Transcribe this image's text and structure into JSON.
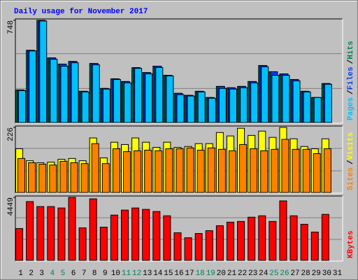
{
  "chart_data": [
    {
      "type": "bar",
      "title": "Daily usage for November 2017",
      "ylim": [
        0,
        748
      ],
      "yticks": [
        748
      ],
      "grid": true,
      "legend_separator": "/",
      "series": [
        {
          "name": "Hits",
          "color": "#00805c",
          "values": [
            235,
            527,
            748,
            471,
            425,
            445,
            225,
            430,
            246,
            317,
            297,
            399,
            363,
            410,
            343,
            210,
            195,
            225,
            179,
            261,
            251,
            261,
            297,
            415,
            369,
            353,
            312,
            225,
            179,
            282,
            null
          ]
        },
        {
          "name": "Files",
          "color": "#0040ff",
          "values": [
            235,
            527,
            748,
            471,
            425,
            445,
            225,
            430,
            246,
            317,
            297,
            399,
            363,
            410,
            343,
            210,
            195,
            225,
            179,
            261,
            251,
            261,
            297,
            415,
            369,
            353,
            312,
            225,
            179,
            282,
            null
          ]
        },
        {
          "name": "Pages",
          "color": "#00c0ff",
          "values": [
            230,
            522,
            743,
            461,
            410,
            435,
            220,
            420,
            241,
            312,
            287,
            394,
            353,
            400,
            338,
            200,
            190,
            220,
            174,
            246,
            241,
            251,
            287,
            405,
            343,
            343,
            302,
            220,
            179,
            277,
            null
          ]
        }
      ],
      "legend_order": [
        "Pages",
        "Files",
        "Hits"
      ]
    },
    {
      "type": "bar",
      "ylim": [
        0,
        226
      ],
      "yticks": [
        226
      ],
      "grid": true,
      "legend_separator": "/",
      "series": [
        {
          "name": "Visits",
          "color": "#ffff00",
          "values": [
            151,
            109,
            102,
            104,
            114,
            117,
            109,
            189,
            119,
            174,
            166,
            189,
            174,
            156,
            174,
            156,
            159,
            169,
            169,
            208,
            196,
            223,
            198,
            213,
            191,
            226,
            186,
            159,
            151,
            186,
            null
          ]
        },
        {
          "name": "Sites",
          "color": "#ff8000",
          "values": [
            117,
            102,
            97,
            94,
            107,
            102,
            99,
            169,
            99,
            151,
            141,
            144,
            146,
            144,
            151,
            151,
            154,
            146,
            154,
            149,
            144,
            166,
            151,
            144,
            149,
            184,
            149,
            149,
            134,
            151,
            null
          ]
        }
      ],
      "legend_order": [
        "Sites",
        "Visits"
      ]
    },
    {
      "type": "bar",
      "ylim": [
        0,
        4449
      ],
      "yticks": [
        4449
      ],
      "grid": true,
      "series": [
        {
          "name": "KBytes",
          "color": "#ff0000",
          "values": [
            2225,
            4150,
            3795,
            3795,
            3694,
            4449,
            2276,
            4348,
            2326,
            3187,
            3542,
            3694,
            3593,
            3441,
            3137,
            1922,
            1568,
            1872,
            2074,
            2428,
            2681,
            2732,
            3036,
            3137,
            2732,
            4200,
            3137,
            2530,
            1973,
            3238,
            null
          ]
        }
      ],
      "legend_order": [
        "KBytes"
      ],
      "categories": [
        "1",
        "2",
        "3",
        "4",
        "5",
        "6",
        "7",
        "8",
        "9",
        "10",
        "11",
        "12",
        "13",
        "14",
        "15",
        "16",
        "17",
        "18",
        "19",
        "20",
        "21",
        "22",
        "23",
        "24",
        "25",
        "26",
        "27",
        "28",
        "29",
        "30",
        "31"
      ],
      "category_colors": [
        "#000000",
        "#000000",
        "#000000",
        "#00805c",
        "#00805c",
        "#000000",
        "#000000",
        "#000000",
        "#000000",
        "#000000",
        "#00805c",
        "#00805c",
        "#000000",
        "#000000",
        "#000000",
        "#000000",
        "#000000",
        "#00805c",
        "#00805c",
        "#000000",
        "#000000",
        "#000000",
        "#000000",
        "#000000",
        "#00805c",
        "#00805c",
        "#000000",
        "#000000",
        "#000000",
        "#000000",
        "#000000"
      ]
    }
  ]
}
